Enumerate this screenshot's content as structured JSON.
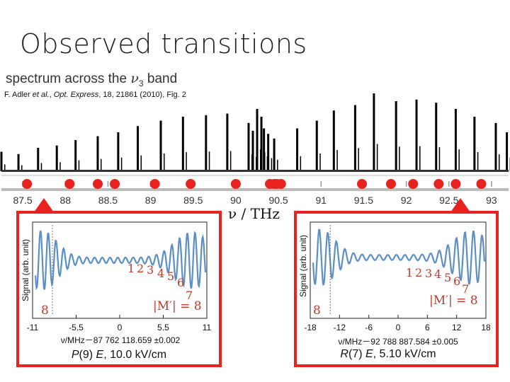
{
  "slide": {
    "title": "Observed transitions",
    "spectrum_heading_prefix": "spectrum across the ",
    "spectrum_heading_symbol": "ν",
    "spectrum_heading_sub": "3",
    "spectrum_heading_suffix": " band",
    "citation_prefix": "F. Adler ",
    "citation_etal": "et al.",
    "citation_mid": ", ",
    "citation_journal": "Opt. Express",
    "citation_suffix": ", 18, 21861 (2010), Fig. 2",
    "axis_label": "ν / THz"
  },
  "colors": {
    "spectrum": "#000000",
    "marker": "#e8231f",
    "panel_border": "#e8231f",
    "trace": "#5b8fc7",
    "annotation": "#c0392b"
  },
  "chart_data": [
    {
      "type": "line",
      "name": "overview",
      "xlim": [
        87.25,
        93.2
      ],
      "x_ticks": [
        "87.5",
        "88",
        "88.5",
        "89",
        "89.5",
        "90",
        "90.5",
        "91",
        "91.5",
        "92",
        "92.5",
        "93"
      ],
      "x_tick_values": [
        87.5,
        88,
        88.5,
        89,
        89.5,
        90,
        90.5,
        91,
        91.5,
        92,
        92.5,
        93
      ],
      "xlabel": "ν / THz",
      "peaks": [
        {
          "x": 87.25,
          "h": 0.25
        },
        {
          "x": 87.45,
          "h": 0.22
        },
        {
          "x": 87.68,
          "h": 0.3
        },
        {
          "x": 87.9,
          "h": 0.33
        },
        {
          "x": 88.12,
          "h": 0.4
        },
        {
          "x": 88.38,
          "h": 0.45
        },
        {
          "x": 88.62,
          "h": 0.5
        },
        {
          "x": 88.85,
          "h": 0.58
        },
        {
          "x": 89.12,
          "h": 0.65
        },
        {
          "x": 89.38,
          "h": 0.7
        },
        {
          "x": 89.65,
          "h": 0.72
        },
        {
          "x": 89.9,
          "h": 0.74
        },
        {
          "x": 90.15,
          "h": 0.62
        },
        {
          "x": 90.2,
          "h": 0.52
        },
        {
          "x": 90.25,
          "h": 0.8
        },
        {
          "x": 90.3,
          "h": 0.7
        },
        {
          "x": 90.33,
          "h": 0.55
        },
        {
          "x": 90.38,
          "h": 0.48
        },
        {
          "x": 90.45,
          "h": 0.42
        },
        {
          "x": 90.72,
          "h": 0.55
        },
        {
          "x": 90.95,
          "h": 0.65
        },
        {
          "x": 91.15,
          "h": 0.78
        },
        {
          "x": 91.4,
          "h": 0.85
        },
        {
          "x": 91.62,
          "h": 1.0
        },
        {
          "x": 91.88,
          "h": 0.9
        },
        {
          "x": 92.12,
          "h": 0.92
        },
        {
          "x": 92.35,
          "h": 0.88
        },
        {
          "x": 92.58,
          "h": 0.8
        },
        {
          "x": 92.8,
          "h": 0.7
        },
        {
          "x": 93.05,
          "h": 0.62
        },
        {
          "x": 93.18,
          "h": 0.5
        }
      ],
      "markers": [
        87.55,
        88.05,
        88.38,
        88.58,
        89.05,
        89.47,
        90.0,
        90.4,
        90.45,
        90.48,
        90.53,
        91.48,
        91.82,
        92.08,
        92.38,
        92.58,
        92.88
      ],
      "highlighted_markers": [
        87.55,
        92.88
      ]
    },
    {
      "type": "line",
      "name": "P(9) E, 10.0 kV/cm",
      "ylabel": "Signal (arb. unit)",
      "xlabel": "ν/MHz－87 762 118.659 ±0.002",
      "x_ticks": [
        "-11",
        "-5.5",
        "0",
        "5.5",
        "11"
      ],
      "xlim": [
        -11,
        11
      ],
      "transition_prefix": "P",
      "transition_j": "(9) ",
      "transition_parity": "E",
      "transition_field": ", 10.0 kV/cm",
      "mlabels": [
        "1",
        "2",
        "3",
        "4",
        "5",
        "6",
        "7",
        "8"
      ],
      "m_label_text": "|M′| = 8",
      "m_label_left": "8"
    },
    {
      "type": "line",
      "name": "R(7) E, 5.10 kV/cm",
      "ylabel": "Signal (arb. unit)",
      "xlabel": "ν/MHz－92 788 887.584 ±0.005",
      "x_ticks": [
        "-18",
        "-12",
        "-6",
        "0",
        "6",
        "12",
        "18"
      ],
      "xlim": [
        -18,
        18
      ],
      "transition_prefix": "R",
      "transition_j": "(7) ",
      "transition_parity": "E",
      "transition_field": ", 5.10 kV/cm",
      "mlabels": [
        "1",
        "2",
        "3",
        "4",
        "5",
        "6",
        "7"
      ],
      "m_label_text": "|M′| = 8",
      "m_label_left": "8"
    }
  ]
}
